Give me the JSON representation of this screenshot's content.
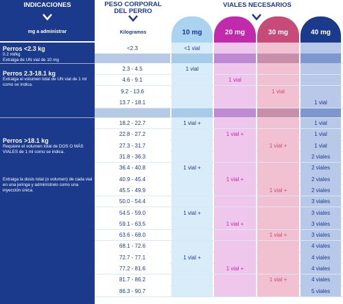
{
  "header": {
    "indicaciones": "INDICACIONES",
    "mg_administrar": "mg a administrar",
    "peso_title": "PESO CORPORAL DEL PERRO",
    "kilogramos": "Kilogramos",
    "viales_title": "VIALES NECESARIOS"
  },
  "vials": [
    {
      "label": "10 mg",
      "head_color": "#a9d3f0",
      "light": "#d9ecf9",
      "dark": "#a7cbe8",
      "text_color": "#1b3a8c"
    },
    {
      "label": "20 mg",
      "head_color": "#c22aac",
      "light": "#efc6ec",
      "dark": "#c089d4",
      "text_color": "#ffffff"
    },
    {
      "label": "30 mg",
      "head_color": "#c74b78",
      "light": "#f1c1d1",
      "dark": "#c88fab",
      "text_color": "#ffffff"
    },
    {
      "label": "40 mg",
      "head_color": "#1b3a8c",
      "light": "#b8c8e8",
      "dark": "#7e97cf",
      "text_color": "#ffffff"
    }
  ],
  "groups": [
    {
      "title": "Perros <2.3 kg",
      "desc": [
        "0.2 ml/kg",
        "Extraiga de UN vial de 10 mg"
      ]
    },
    {
      "title": "Perros 2.3-18.1 kg",
      "desc": [
        "Extraiga el volumen total de UN vial de 1 ml como se indica."
      ]
    },
    {
      "title": "Perros >18.1 kg",
      "desc": [
        "Requiere el volumen total de DOS O MÁS VIALES de 1 ml como se indica.",
        "Extraiga la dosis total (o volumen) de cada vial en una jeringa y adminístrelo como una inyección única."
      ]
    }
  ],
  "rows": [
    {
      "weight": "<2.3",
      "v10": "<1 vial",
      "v20": "",
      "v30": "",
      "v40": "",
      "spacer": false
    },
    {
      "weight": "",
      "v10": "",
      "v20": "",
      "v30": "",
      "v40": "",
      "spacer": true
    },
    {
      "weight": "2.3 - 4.5",
      "v10": "1 vial",
      "v20": "",
      "v30": "",
      "v40": "",
      "spacer": false
    },
    {
      "weight": "4.6 - 9.1",
      "v10": "",
      "v20": "1 vial",
      "v30": "",
      "v40": "",
      "spacer": false
    },
    {
      "weight": "9.2 - 13.6",
      "v10": "",
      "v20": "",
      "v30": "1 vial",
      "v40": "",
      "spacer": false
    },
    {
      "weight": "13.7 - 18.1",
      "v10": "",
      "v20": "",
      "v30": "",
      "v40": "1 vial",
      "spacer": false
    },
    {
      "weight": "",
      "v10": "",
      "v20": "",
      "v30": "",
      "v40": "",
      "spacer": true
    },
    {
      "weight": "18.2 - 22.7",
      "v10": "1 vial +",
      "v20": "",
      "v30": "",
      "v40": "1 vial",
      "spacer": false
    },
    {
      "weight": "22.8 - 27.2",
      "v10": "",
      "v20": "1 vial +",
      "v30": "",
      "v40": "1 vial",
      "spacer": false
    },
    {
      "weight": "27.3 - 31.7",
      "v10": "",
      "v20": "",
      "v30": "1 vial +",
      "v40": "1 vial",
      "spacer": false
    },
    {
      "weight": "31.8 - 36.3",
      "v10": "",
      "v20": "",
      "v30": "",
      "v40": "2 viales",
      "spacer": false
    },
    {
      "weight": "36.4 - 40.8",
      "v10": "1 vial +",
      "v20": "",
      "v30": "",
      "v40": "2 viales",
      "spacer": false
    },
    {
      "weight": "40.9 - 45.4",
      "v10": "",
      "v20": "1 vial +",
      "v30": "",
      "v40": "2 viales",
      "spacer": false
    },
    {
      "weight": "45.5 - 49.9",
      "v10": "",
      "v20": "",
      "v30": "1 vial +",
      "v40": "2 viales",
      "spacer": false
    },
    {
      "weight": "50.0 - 54.4",
      "v10": "",
      "v20": "",
      "v30": "",
      "v40": "3 viales",
      "spacer": false
    },
    {
      "weight": "54.5 - 59.0",
      "v10": "1 vial +",
      "v20": "",
      "v30": "",
      "v40": "3 viales",
      "spacer": false
    },
    {
      "weight": "59.1 - 63.5",
      "v10": "",
      "v20": "1 vial +",
      "v30": "",
      "v40": "3 viales",
      "spacer": false
    },
    {
      "weight": "63.6 - 68.0",
      "v10": "",
      "v20": "",
      "v30": "1 vial +",
      "v40": "3 viales",
      "spacer": false
    },
    {
      "weight": "68.1 - 72.6",
      "v10": "",
      "v20": "",
      "v30": "",
      "v40": "4 viales",
      "spacer": false
    },
    {
      "weight": "72.7 - 77.1",
      "v10": "1 vial +",
      "v20": "",
      "v30": "",
      "v40": "4 viales",
      "spacer": false
    },
    {
      "weight": "77.2 - 81.6",
      "v10": "",
      "v20": "1 vial +",
      "v30": "",
      "v40": "4 viales",
      "spacer": false
    },
    {
      "weight": "81.7 - 86.2",
      "v10": "",
      "v20": "",
      "v30": "1 vial +",
      "v40": "4 viales",
      "spacer": false
    },
    {
      "weight": "86.3 - 90.7",
      "v10": "",
      "v20": "",
      "v30": "",
      "v40": "5 viales",
      "spacer": false
    }
  ]
}
